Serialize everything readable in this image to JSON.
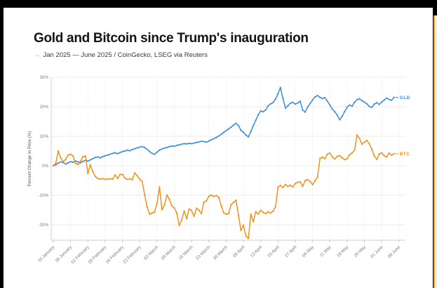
{
  "header": {
    "title": "Gold and Bitcoin since Trump's inauguration",
    "subtitle_arrow": "→",
    "subtitle": "Jan 2025 — June 2025 / CoinGecko, LSEG via Reuters"
  },
  "colors": {
    "gld": "#3e8ede",
    "btc": "#f0921e",
    "grid": "#ebebeb",
    "vgrid": "#f4f4f4",
    "axis": "#cfcfcf",
    "tick_text": "#7a7a7a",
    "next_card_border": "#e39a3b",
    "next_card_fill": "#f6eed9"
  },
  "chart_data": {
    "type": "line",
    "title": "Gold and Bitcoin since Trump's inauguration",
    "xlabel": "",
    "ylabel": "Percent Change In Price (%)",
    "ylim": [
      -25.5,
      30.5
    ],
    "grid": true,
    "legend_position": "line-end-labels",
    "y_ticks": [
      30,
      20,
      10,
      0,
      -10,
      -20
    ],
    "y_tick_suffix": "%",
    "x_unit": "days since 19 January 2025, daily points",
    "x_tick_days": [
      0,
      7,
      14,
      21,
      28,
      35,
      42,
      49,
      56,
      63,
      70,
      77,
      84,
      91,
      98,
      105,
      112,
      119,
      126,
      133,
      140
    ],
    "x_tick_labels": [
      "19 January",
      "26 January",
      "02 February",
      "09 February",
      "16 February",
      "23 February",
      "02 March",
      "09 March",
      "16 March",
      "23 March",
      "30 March",
      "06 April",
      "13 April",
      "20 April",
      "27 April",
      "04 May",
      "11 May",
      "18 May",
      "25 May",
      "01 June",
      "08 June"
    ],
    "series": [
      {
        "name": "GLD",
        "color": "#3e8ede",
        "values": [
          0,
          0.3,
          0.9,
          1.3,
          1.1,
          0.6,
          1.0,
          1.4,
          1.2,
          1.6,
          1.3,
          1.0,
          1.5,
          1.8,
          1.6,
          2.0,
          2.4,
          2.8,
          3.0,
          2.7,
          3.1,
          3.4,
          3.6,
          3.9,
          4.2,
          4.4,
          4.1,
          4.5,
          4.8,
          5.0,
          5.3,
          5.1,
          5.5,
          5.8,
          6.1,
          6.3,
          6.5,
          6.2,
          5.6,
          4.8,
          4.2,
          3.9,
          4.6,
          5.3,
          5.7,
          6.0,
          6.2,
          6.5,
          6.7,
          6.6,
          6.9,
          7.1,
          7.3,
          7.5,
          7.4,
          7.6,
          7.5,
          7.7,
          7.9,
          8.1,
          8.3,
          8.2,
          8.0,
          8.4,
          8.8,
          9.2,
          9.6,
          10.1,
          10.7,
          11.3,
          11.9,
          12.5,
          13.1,
          13.8,
          14.4,
          13.6,
          12.0,
          11.4,
          10.4,
          9.8,
          11.6,
          13.6,
          15.4,
          17.3,
          18.6,
          18.3,
          18.9,
          20.3,
          21.0,
          21.4,
          22.6,
          24.4,
          26.5,
          22.8,
          19.6,
          20.3,
          21.2,
          21.5,
          20.9,
          21.3,
          21.9,
          18.9,
          18.2,
          19.9,
          21.1,
          22.3,
          23.3,
          23.8,
          23.2,
          22.8,
          23.1,
          21.9,
          20.6,
          19.2,
          18.3,
          17.2,
          15.6,
          16.8,
          18.4,
          19.9,
          20.6,
          20.2,
          21.5,
          22.4,
          22.7,
          22.1,
          21.6,
          21.0,
          20.1,
          19.8,
          20.9,
          21.4,
          20.8,
          21.6,
          22.3,
          22.9,
          22.5,
          22.2,
          23.2
        ]
      },
      {
        "name": "BTC",
        "color": "#f0921e",
        "values": [
          0,
          0.9,
          5.0,
          2.6,
          1.4,
          2.2,
          3.6,
          3.9,
          3.3,
          0.8,
          0.4,
          1.6,
          3.1,
          3.3,
          -2.6,
          0.3,
          -2.0,
          -3.6,
          -4.3,
          -4.5,
          -4.4,
          -4.6,
          -4.5,
          -4.4,
          -4.6,
          -3.1,
          -4.3,
          -3.0,
          -2.9,
          -4.2,
          -4.6,
          -4.4,
          -4.7,
          -2.4,
          -3.4,
          -4.6,
          -5.3,
          -9.8,
          -14.0,
          -16.4,
          -16.0,
          -15.7,
          -12.8,
          -7.2,
          -14.9,
          -13.3,
          -9.9,
          -11.3,
          -13.6,
          -14.3,
          -16.0,
          -20.2,
          -18.4,
          -15.3,
          -17.9,
          -14.7,
          -15.2,
          -17.1,
          -14.4,
          -15.1,
          -16.2,
          -12.3,
          -11.9,
          -10.3,
          -9.9,
          -10.4,
          -10.1,
          -10.7,
          -13.5,
          -15.9,
          -16.4,
          -16.2,
          -13.2,
          -12.4,
          -11.7,
          -16.8,
          -21.9,
          -20.1,
          -23.8,
          -24.6,
          -16.4,
          -19.0,
          -15.6,
          -16.3,
          -15.1,
          -15.8,
          -16.2,
          -15.6,
          -16.0,
          -15.4,
          -13.8,
          -7.3,
          -6.7,
          -7.4,
          -6.3,
          -7.0,
          -6.6,
          -7.2,
          -6.0,
          -5.6,
          -5.5,
          -7.0,
          -5.0,
          -4.7,
          -5.3,
          -6.4,
          -5.1,
          -3.9,
          2.5,
          2.9,
          2.4,
          3.9,
          4.3,
          3.0,
          2.3,
          3.2,
          3.4,
          2.7,
          2.1,
          2.4,
          3.7,
          4.4,
          5.3,
          10.4,
          9.3,
          7.3,
          8.0,
          8.6,
          7.4,
          5.6,
          3.3,
          2.2,
          4.0,
          4.4,
          3.4,
          3.0,
          4.3,
          3.6,
          4.1
        ]
      }
    ]
  }
}
